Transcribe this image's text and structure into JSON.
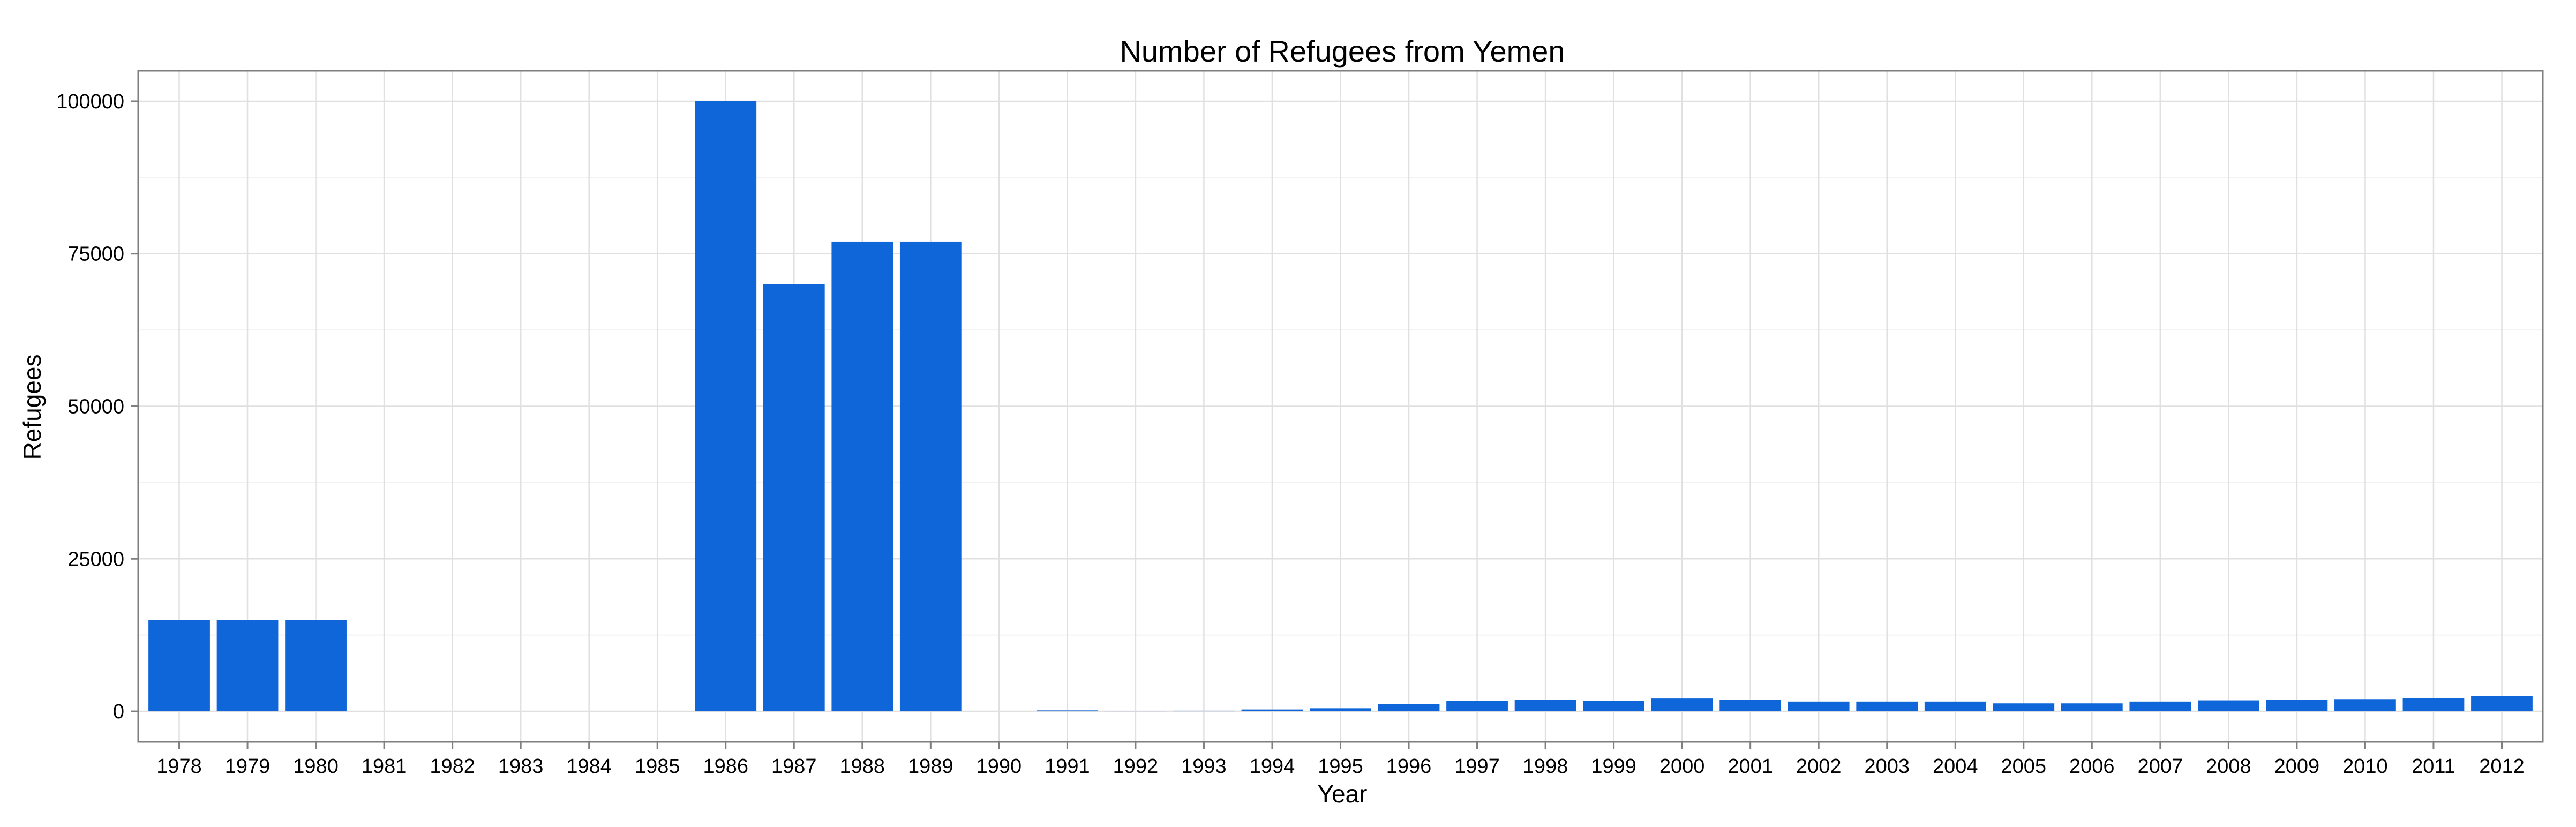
{
  "chart_data": {
    "type": "bar",
    "title": "Number of Refugees from Yemen",
    "xlabel": "Year",
    "ylabel": "Refugees",
    "ylim": [
      -5000,
      105000
    ],
    "yticks": [
      0,
      25000,
      50000,
      75000,
      100000
    ],
    "ytick_labels": [
      "0",
      "25000",
      "50000",
      "75000",
      "100000"
    ],
    "grid": true,
    "legend": "none",
    "bar_color": "#0f66d9",
    "categories": [
      "1978",
      "1979",
      "1980",
      "1981",
      "1982",
      "1983",
      "1984",
      "1985",
      "1986",
      "1987",
      "1988",
      "1989",
      "1990",
      "1991",
      "1992",
      "1993",
      "1994",
      "1995",
      "1996",
      "1997",
      "1998",
      "1999",
      "2000",
      "2001",
      "2002",
      "2003",
      "2004",
      "2005",
      "2006",
      "2007",
      "2008",
      "2009",
      "2010",
      "2011",
      "2012"
    ],
    "values": [
      15000,
      15000,
      15000,
      0,
      0,
      0,
      0,
      0,
      100000,
      70000,
      77000,
      77000,
      0,
      150,
      80,
      100,
      300,
      500,
      1200,
      1700,
      1900,
      1700,
      2100,
      1900,
      1600,
      1600,
      1600,
      1300,
      1300,
      1600,
      1800,
      1900,
      2000,
      2200,
      2500
    ]
  }
}
